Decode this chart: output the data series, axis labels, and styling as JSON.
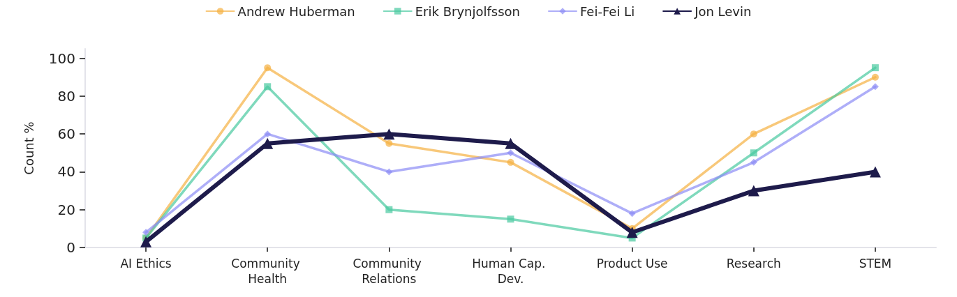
{
  "chart_data": {
    "type": "line",
    "ylabel": "Count %",
    "categories": [
      "AI Ethics",
      "Community Health",
      "Community Relations",
      "Human Cap. Dev.",
      "Product Use",
      "Research",
      "STEM"
    ],
    "series": [
      {
        "name": "Andrew Huberman",
        "color": "#f5b041",
        "marker": "circle",
        "values": [
          5,
          95,
          55,
          45,
          10,
          60,
          90
        ]
      },
      {
        "name": "Erik Brynjolfsson",
        "color": "#48c9a0",
        "marker": "square",
        "values": [
          5,
          85,
          20,
          15,
          5,
          50,
          95
        ]
      },
      {
        "name": "Fei-Fei Li",
        "color": "#8c8cf5",
        "marker": "diamond",
        "values": [
          8,
          60,
          40,
          50,
          18,
          45,
          85
        ]
      },
      {
        "name": "Jon Levin",
        "color": "#1e1b4b",
        "marker": "triangle",
        "values": [
          3,
          55,
          60,
          55,
          8,
          30,
          40
        ]
      }
    ],
    "ylim": [
      0,
      105
    ],
    "yticks": [
      0,
      20,
      40,
      60,
      80,
      100
    ],
    "grid": false,
    "legend": "top",
    "line_style": "solid"
  }
}
